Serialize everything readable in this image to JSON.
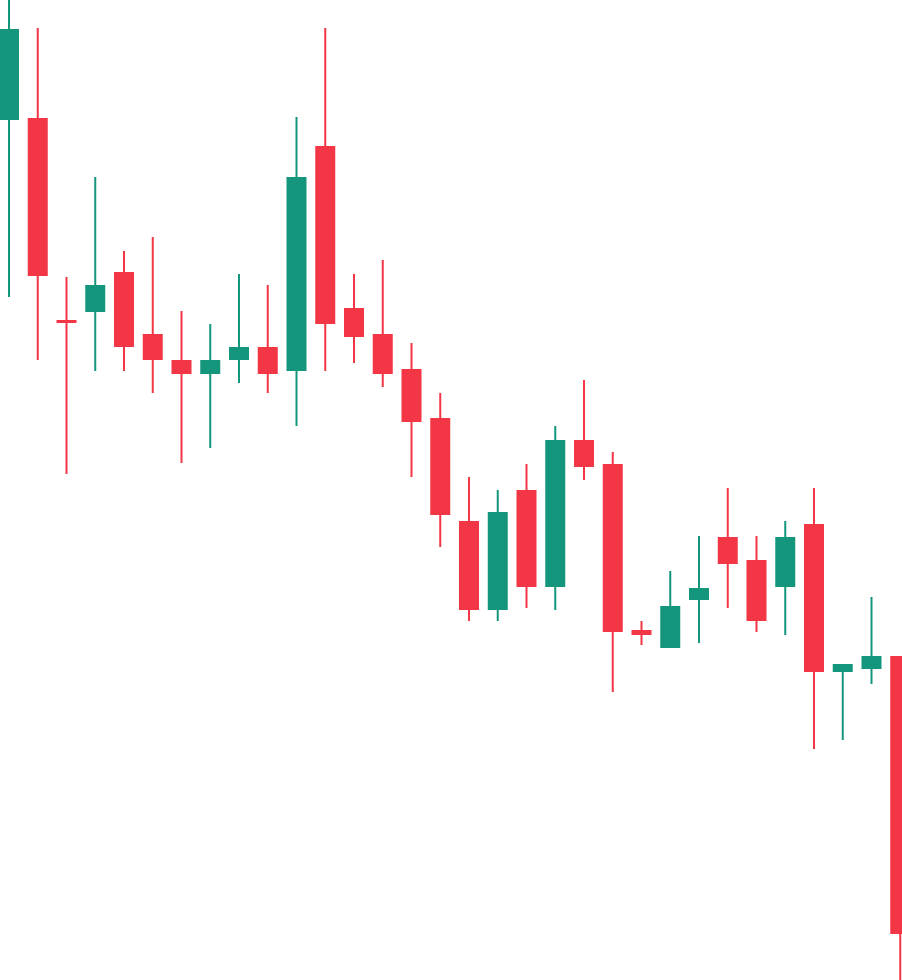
{
  "colors": {
    "up": "#14967c",
    "down": "#f23645",
    "background": "#ffffff"
  },
  "chart_data": {
    "type": "candlestick",
    "title": "",
    "xlabel": "",
    "ylabel": "",
    "axes_visible": false,
    "grid": false,
    "legend": "none",
    "ylim": [
      0,
      980
    ],
    "candles": [
      {
        "open": 860,
        "high": 980,
        "low": 683,
        "close": 951
      },
      {
        "open": 862,
        "high": 952,
        "low": 620,
        "close": 704
      },
      {
        "open": 660,
        "high": 703,
        "low": 506,
        "close": 657
      },
      {
        "open": 668,
        "high": 803,
        "low": 609,
        "close": 695
      },
      {
        "open": 708,
        "high": 729,
        "low": 609,
        "close": 633
      },
      {
        "open": 646,
        "high": 743,
        "low": 587,
        "close": 620
      },
      {
        "open": 620,
        "high": 669,
        "low": 517,
        "close": 606
      },
      {
        "open": 606,
        "high": 656,
        "low": 532,
        "close": 620
      },
      {
        "open": 620,
        "high": 706,
        "low": 597,
        "close": 633
      },
      {
        "open": 633,
        "high": 695,
        "low": 587,
        "close": 606
      },
      {
        "open": 609,
        "high": 863,
        "low": 554,
        "close": 803
      },
      {
        "open": 834,
        "high": 952,
        "low": 609,
        "close": 656
      },
      {
        "open": 672,
        "high": 706,
        "low": 617,
        "close": 643
      },
      {
        "open": 646,
        "high": 720,
        "low": 593,
        "close": 606
      },
      {
        "open": 611,
        "high": 637,
        "low": 503,
        "close": 558
      },
      {
        "open": 562,
        "high": 587,
        "low": 433,
        "close": 465
      },
      {
        "open": 459,
        "high": 503,
        "low": 359,
        "close": 370
      },
      {
        "open": 370,
        "high": 490,
        "low": 359,
        "close": 468
      },
      {
        "open": 490,
        "high": 516,
        "low": 372,
        "close": 393
      },
      {
        "open": 393,
        "high": 554,
        "low": 370,
        "close": 540
      },
      {
        "open": 540,
        "high": 600,
        "low": 500,
        "close": 513
      },
      {
        "open": 516,
        "high": 528,
        "low": 288,
        "close": 348
      },
      {
        "open": 350,
        "high": 359,
        "low": 335,
        "close": 345
      },
      {
        "open": 332,
        "high": 409,
        "low": 332,
        "close": 374
      },
      {
        "open": 380,
        "high": 444,
        "low": 337,
        "close": 392
      },
      {
        "open": 443,
        "high": 492,
        "low": 372,
        "close": 416
      },
      {
        "open": 420,
        "high": 444,
        "low": 348,
        "close": 359
      },
      {
        "open": 393,
        "high": 459,
        "low": 345,
        "close": 443
      },
      {
        "open": 456,
        "high": 492,
        "low": 231,
        "close": 308
      },
      {
        "open": 308,
        "high": 316,
        "low": 240,
        "close": 316
      },
      {
        "open": 311,
        "high": 383,
        "low": 296,
        "close": 324
      },
      {
        "open": 324,
        "high": 324,
        "low": 0,
        "close": 46
      }
    ]
  }
}
